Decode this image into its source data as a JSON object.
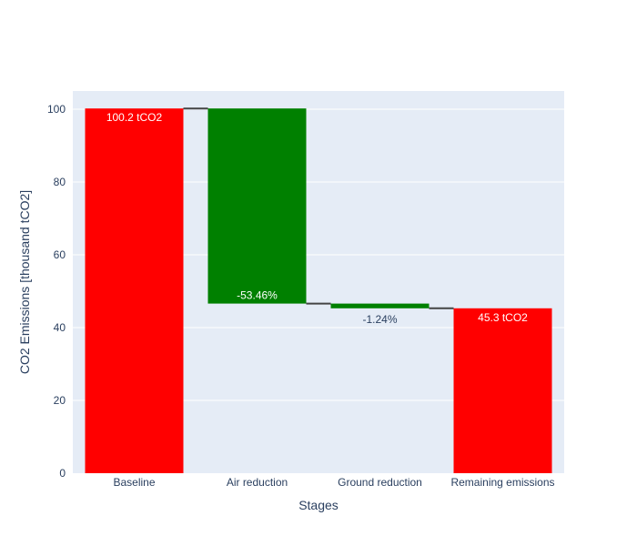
{
  "chart_data": {
    "type": "waterfall",
    "title": "",
    "xlabel": "Stages",
    "ylabel": "CO2 Emissions [thousand tCO2]",
    "ylim": [
      0,
      105
    ],
    "yticks": [
      "0",
      "20",
      "40",
      "60",
      "80",
      "100"
    ],
    "grid": true,
    "colors": {
      "total": "#ff0000",
      "decrease": "#008000",
      "connector": "#444444",
      "plot_bg": "#e5ecf6",
      "gridline": "#ffffff"
    },
    "bars": [
      {
        "category": "Baseline",
        "kind": "total",
        "start": 0,
        "end": 100.2,
        "label": "100.2 tCO2",
        "label_position": "inside-top",
        "label_color": "#ffffff"
      },
      {
        "category": "Air reduction",
        "kind": "decrease",
        "start": 100.2,
        "end": 46.6,
        "label": "-53.46%",
        "label_position": "inside-bottom",
        "label_color": "#ffffff"
      },
      {
        "category": "Ground reduction",
        "kind": "decrease",
        "start": 46.6,
        "end": 45.3,
        "label": "-1.24%",
        "label_position": "outside-below",
        "label_color": "#2a3f5f"
      },
      {
        "category": "Remaining emissions",
        "kind": "total",
        "start": 0,
        "end": 45.3,
        "label": "45.3 tCO2",
        "label_position": "inside-top",
        "label_color": "#ffffff"
      }
    ]
  }
}
